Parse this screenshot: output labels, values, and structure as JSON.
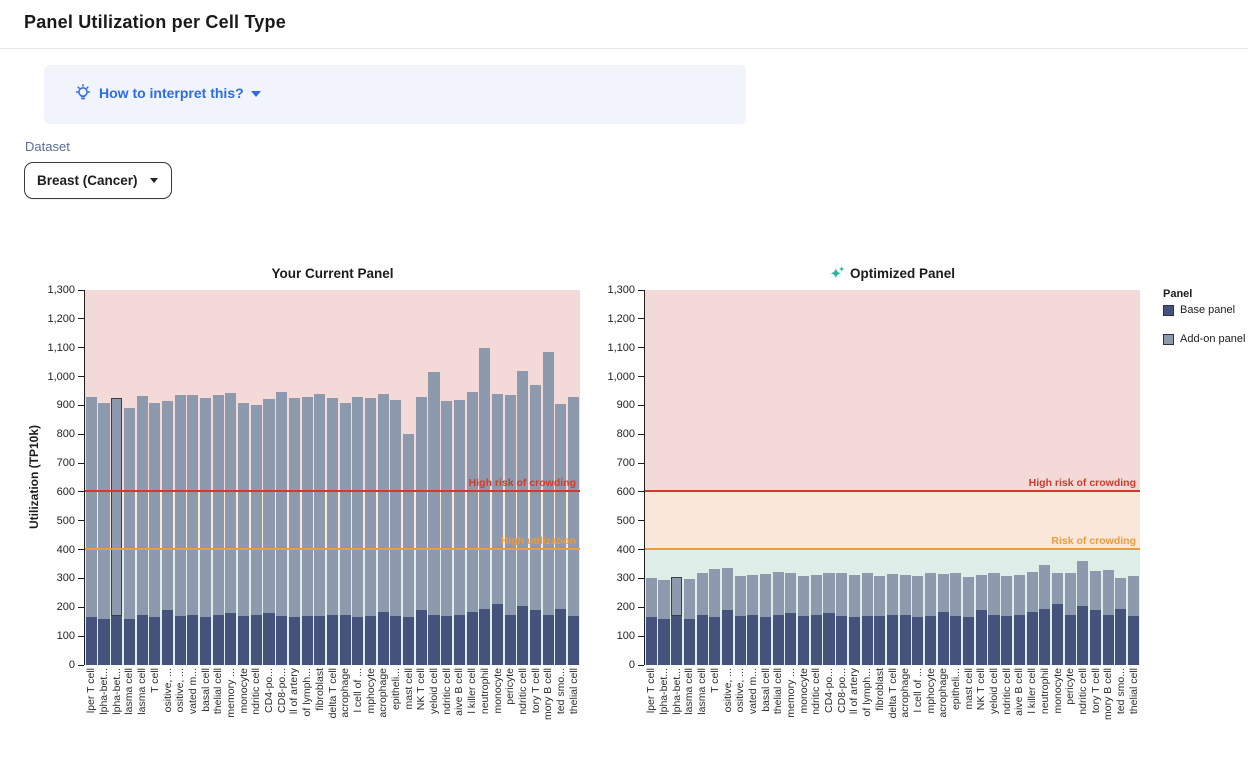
{
  "page": {
    "title": "Panel Utilization per Cell Type"
  },
  "interpret": {
    "label": "How to interpret this?",
    "icon": "lightbulb-icon",
    "caret_icon": "caret-down-icon"
  },
  "dataset": {
    "label": "Dataset",
    "value": "Breast (Cancer)",
    "caret_icon": "caret-down-icon"
  },
  "legend": {
    "title": "Panel",
    "items": [
      {
        "label": "Base panel",
        "color": "#44527c"
      },
      {
        "label": "Add-on panel",
        "color": "#8d99ad"
      }
    ]
  },
  "colors": {
    "base_panel": "#44527c",
    "addon_panel": "#8d99ad",
    "high_risk_line": "#d23a2e",
    "risk_line": "#ec9b3d",
    "band_high_risk": "#f3dad8",
    "band_risk": "#f9e8d9",
    "band_ok": "#ddede7",
    "accent_blue": "#2e6be6",
    "sparkle_teal": "#2fb3a2",
    "highlight_outline": "#3a3f47"
  },
  "chart_data": [
    {
      "type": "bar",
      "title": "Your Current Panel",
      "title_icon": null,
      "ylabel": "Utilization (TP10k)",
      "xlabel": "",
      "ylim": [
        0,
        1300
      ],
      "grid": false,
      "legend_position": "right",
      "yticks": [
        "0",
        "100",
        "200",
        "300",
        "400",
        "500",
        "600",
        "700",
        "800",
        "900",
        "1,000",
        "1,100",
        "1,200",
        "1,300"
      ],
      "bands": [
        {
          "from": 600,
          "to": 1300,
          "color": "#f3dad8"
        },
        {
          "from": 400,
          "to": 600,
          "color": "#f9e8d9"
        },
        {
          "from": 0,
          "to": 400,
          "color": "#ddede7"
        }
      ],
      "thresholds": [
        {
          "value": 600,
          "label": "High risk of crowding",
          "color": "#d23a2e"
        },
        {
          "value": 400,
          "label": "High utilization",
          "color": "#ec9b3d"
        }
      ],
      "highlighted_index": 2,
      "categories": [
        "lper T cell",
        "lpha-bet...",
        "lpha-bet...",
        "lasma cell",
        "lasma cell",
        "T cell",
        "ositive, ...",
        "ositive, ...",
        "vated m...",
        "basal cell",
        "thelial cell",
        "memory ...",
        "monocyte",
        "ndritic cell",
        "CD4-po...",
        "CD8-po...",
        "ll of artery",
        "of lymph...",
        "fibroblast",
        "delta T cell",
        "acrophage",
        "l cell of ...",
        "mphocyte",
        "acrophage",
        "epitheli...",
        "mast cell",
        "NK T cell",
        "yeloid cell",
        "ndritic cell",
        "aive B cell",
        "l killer cell",
        "neutrophil",
        "monocyte",
        "pericyte",
        "ndritic cell",
        "tory T cell",
        "mory B cell",
        "ted smo...",
        "thelial cell"
      ],
      "series": [
        {
          "name": "Base panel",
          "values": [
            165,
            160,
            170,
            160,
            172,
            165,
            190,
            170,
            175,
            165,
            172,
            180,
            170,
            175,
            180,
            170,
            165,
            170,
            170,
            172,
            175,
            168,
            170,
            185,
            170,
            165,
            190,
            175,
            170,
            175,
            185,
            195,
            210,
            175,
            205,
            190,
            175,
            195,
            170
          ]
        },
        {
          "name": "Add-on panel",
          "values": [
            765,
            750,
            755,
            730,
            760,
            743,
            725,
            765,
            760,
            760,
            765,
            764,
            737,
            725,
            741,
            778,
            759,
            759,
            768,
            754,
            733,
            761,
            754,
            755,
            750,
            635,
            740,
            840,
            745,
            745,
            760,
            905,
            730,
            760,
            815,
            780,
            910,
            710,
            760
          ]
        }
      ]
    },
    {
      "type": "bar",
      "title": "Optimized Panel",
      "title_icon": "sparkles-icon",
      "ylabel": "",
      "xlabel": "",
      "ylim": [
        0,
        1300
      ],
      "grid": false,
      "legend_position": "right",
      "yticks": [
        "0",
        "100",
        "200",
        "300",
        "400",
        "500",
        "600",
        "700",
        "800",
        "900",
        "1,000",
        "1,100",
        "1,200",
        "1,300"
      ],
      "bands": [
        {
          "from": 600,
          "to": 1300,
          "color": "#f3dad8"
        },
        {
          "from": 400,
          "to": 600,
          "color": "#f9e8d9"
        },
        {
          "from": 0,
          "to": 400,
          "color": "#ddede7"
        }
      ],
      "thresholds": [
        {
          "value": 600,
          "label": "High risk of crowding",
          "color": "#d23a2e"
        },
        {
          "value": 400,
          "label": "Risk of crowding",
          "color": "#ec9b3d"
        }
      ],
      "highlighted_index": 2,
      "categories": [
        "lper T cell",
        "lpha-bet...",
        "lpha-bet...",
        "lasma cell",
        "lasma cell",
        "T cell",
        "ositive, ...",
        "ositive, ...",
        "vated m...",
        "basal cell",
        "thelial cell",
        "memory ...",
        "monocyte",
        "ndritic cell",
        "CD4-po...",
        "CD8-po...",
        "ll of artery",
        "of lymph...",
        "fibroblast",
        "delta T cell",
        "acrophage",
        "l cell of ...",
        "mphocyte",
        "acrophage",
        "epitheli...",
        "mast cell",
        "NK T cell",
        "yeloid cell",
        "ndritic cell",
        "aive B cell",
        "l killer cell",
        "neutrophil",
        "monocyte",
        "pericyte",
        "ndritic cell",
        "tory T cell",
        "mory B cell",
        "ted smo...",
        "thelial cell"
      ],
      "series": [
        {
          "name": "Base panel",
          "values": [
            165,
            160,
            170,
            160,
            172,
            165,
            190,
            170,
            175,
            165,
            172,
            180,
            170,
            175,
            180,
            170,
            165,
            170,
            170,
            172,
            175,
            168,
            170,
            185,
            170,
            165,
            190,
            175,
            170,
            175,
            185,
            195,
            210,
            175,
            205,
            190,
            175,
            195,
            170
          ]
        },
        {
          "name": "Add-on panel",
          "values": [
            135,
            135,
            135,
            138,
            146,
            167,
            148,
            140,
            137,
            150,
            150,
            138,
            138,
            137,
            138,
            150,
            147,
            148,
            140,
            143,
            137,
            140,
            148,
            130,
            150,
            140,
            122,
            145,
            138,
            137,
            137,
            150,
            108,
            145,
            155,
            135,
            155,
            107,
            138
          ]
        }
      ]
    }
  ]
}
